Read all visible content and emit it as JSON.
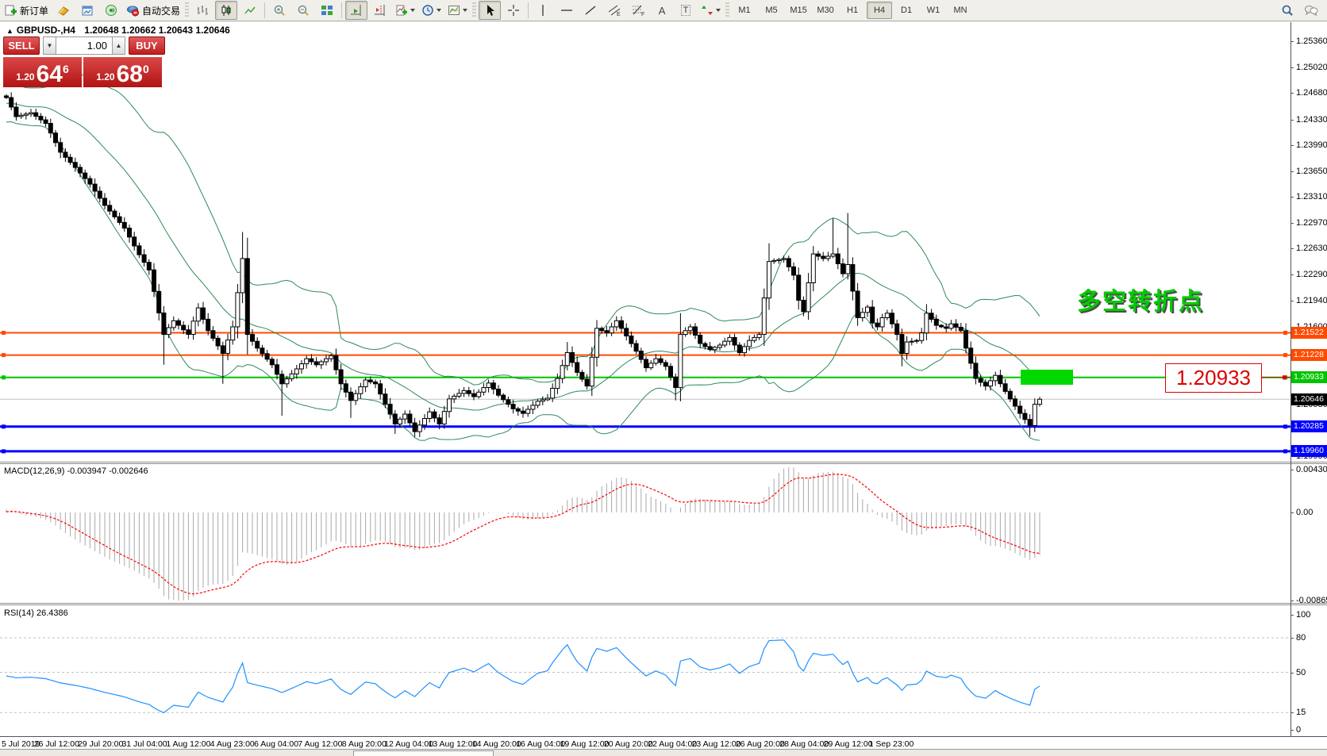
{
  "toolbar": {
    "new_order_label": "新订单",
    "autotrade_label": "自动交易",
    "letter_a": "A",
    "letter_t": "T",
    "timeframes": [
      {
        "id": "M1"
      },
      {
        "id": "M5"
      },
      {
        "id": "M15"
      },
      {
        "id": "M30"
      },
      {
        "id": "H1"
      },
      {
        "id": "H4",
        "active": true
      },
      {
        "id": "D1"
      },
      {
        "id": "W1"
      },
      {
        "id": "MN"
      }
    ]
  },
  "oneclick": {
    "sell_label": "SELL",
    "buy_label": "BUY",
    "volume": "1.00",
    "sell_small": "1.20",
    "sell_big": "64",
    "sell_sup": "6",
    "buy_small": "1.20",
    "buy_big": "68",
    "buy_sup": "0"
  },
  "chart": {
    "title": "GBPUSD-,H4",
    "ohlc": "1.20648 1.20662 1.20643 1.20646",
    "marker": "▲"
  },
  "annotations": {
    "turning_point": "多空转折点",
    "price_box": "1.20933"
  },
  "time_axis": {
    "labels": [
      "5 Jul 2019",
      "26 Jul 12:00",
      "29 Jul 20:00",
      "31 Jul 04:00",
      "1 Aug 12:00",
      "4 Aug 23:00",
      "6 Aug 04:00",
      "7 Aug 12:00",
      "8 Aug 20:00",
      "12 Aug 04:00",
      "13 Aug 12:00",
      "14 Aug 20:00",
      "16 Aug 04:00",
      "19 Aug 12:00",
      "20 Aug 20:00",
      "22 Aug 04:00",
      "23 Aug 12:00",
      "26 Aug 20:00",
      "28 Aug 04:00",
      "29 Aug 12:00",
      "1 Sep 23:00"
    ]
  },
  "chart_data": [
    {
      "type": "candlestick",
      "symbol": "GBPUSD-",
      "period": "H4",
      "bid": 1.20646,
      "bid_label": "1.20646",
      "y_ticks": [
        "1.25360",
        "1.25020",
        "1.24680",
        "1.24330",
        "1.23990",
        "1.23650",
        "1.23310",
        "1.22970",
        "1.22630",
        "1.22290",
        "1.21940",
        "1.21600",
        "1.21260",
        "1.20920",
        "1.20580",
        "1.20240",
        "1.19900"
      ],
      "y_top_price": 1.2536,
      "y_bottom_price": 1.199,
      "hlines": [
        {
          "price": 1.21522,
          "label": "1.21522",
          "color": "#ff4b00",
          "width": 2
        },
        {
          "price": 1.21228,
          "label": "1.21228",
          "color": "#ff4b00",
          "width": 2
        },
        {
          "price": 1.20933,
          "label": "1.20933",
          "color": "#00c400",
          "width": 2
        },
        {
          "price": 1.20285,
          "label": "1.20285",
          "color": "#0000ff",
          "width": 3
        },
        {
          "price": 1.1996,
          "label": "1.19960",
          "color": "#0000ff",
          "width": 3
        }
      ],
      "bollinger_period": 20,
      "bollinger_dev": 2,
      "close_path": [
        [
          0,
          1.2462
        ],
        [
          2,
          1.2437
        ],
        [
          5,
          1.2442
        ],
        [
          8,
          1.2428
        ],
        [
          11,
          1.239
        ],
        [
          14,
          1.237
        ],
        [
          17,
          1.2348
        ],
        [
          20,
          1.232
        ],
        [
          24,
          1.229
        ],
        [
          27,
          1.2255
        ],
        [
          29,
          1.2235
        ],
        [
          32,
          1.215
        ],
        [
          34,
          1.2168
        ],
        [
          37,
          1.215
        ],
        [
          39,
          1.2185
        ],
        [
          41,
          1.2155
        ],
        [
          44,
          1.2125
        ],
        [
          46,
          1.216
        ],
        [
          48,
          1.225
        ],
        [
          49,
          1.215
        ],
        [
          51,
          1.2132
        ],
        [
          54,
          1.211
        ],
        [
          56,
          1.2085
        ],
        [
          58,
          1.2098
        ],
        [
          61,
          1.2118
        ],
        [
          63,
          1.211
        ],
        [
          66,
          1.2122
        ],
        [
          68,
          1.2085
        ],
        [
          70,
          1.2063
        ],
        [
          73,
          1.209
        ],
        [
          75,
          1.2085
        ],
        [
          77,
          1.2058
        ],
        [
          79,
          1.2032
        ],
        [
          81,
          1.2045
        ],
        [
          83,
          1.2022
        ],
        [
          86,
          1.2048
        ],
        [
          88,
          1.2032
        ],
        [
          90,
          1.2065
        ],
        [
          93,
          1.2076
        ],
        [
          95,
          1.2068
        ],
        [
          98,
          1.2086
        ],
        [
          100,
          1.207
        ],
        [
          103,
          1.2052
        ],
        [
          105,
          1.2046
        ],
        [
          108,
          1.2062
        ],
        [
          110,
          1.2066
        ],
        [
          112,
          1.2092
        ],
        [
          114,
          1.2126
        ],
        [
          116,
          1.21
        ],
        [
          118,
          1.2082
        ],
        [
          120,
          1.2158
        ],
        [
          122,
          1.2152
        ],
        [
          124,
          1.2168
        ],
        [
          126,
          1.2148
        ],
        [
          128,
          1.2128
        ],
        [
          130,
          1.2106
        ],
        [
          132,
          1.2118
        ],
        [
          134,
          1.2108
        ],
        [
          136,
          1.208
        ],
        [
          137,
          1.215
        ],
        [
          139,
          1.216
        ],
        [
          141,
          1.2138
        ],
        [
          143,
          1.213
        ],
        [
          145,
          1.2136
        ],
        [
          147,
          1.2146
        ],
        [
          149,
          1.2126
        ],
        [
          151,
          1.2142
        ],
        [
          153,
          1.215
        ],
        [
          155,
          1.2246
        ],
        [
          158,
          1.225
        ],
        [
          160,
          1.2228
        ],
        [
          161,
          1.2195
        ],
        [
          162,
          1.218
        ],
        [
          164,
          1.2256
        ],
        [
          166,
          1.225
        ],
        [
          168,
          1.2256
        ],
        [
          170,
          1.223
        ],
        [
          171,
          1.2242
        ],
        [
          173,
          1.2172
        ],
        [
          175,
          1.2186
        ],
        [
          176,
          1.2165
        ],
        [
          177,
          1.216
        ],
        [
          178,
          1.2172
        ],
        [
          179,
          1.2178
        ],
        [
          181,
          1.215
        ],
        [
          182,
          1.2125
        ],
        [
          183,
          1.214
        ],
        [
          185,
          1.2142
        ],
        [
          186,
          1.2152
        ],
        [
          187,
          1.2178
        ],
        [
          189,
          1.2162
        ],
        [
          191,
          1.2158
        ],
        [
          192,
          1.2164
        ],
        [
          194,
          1.2155
        ],
        [
          195,
          1.2132
        ],
        [
          197,
          1.2092
        ],
        [
          199,
          1.2082
        ],
        [
          201,
          1.2096
        ],
        [
          202,
          1.2085
        ],
        [
          204,
          1.2065
        ],
        [
          206,
          1.2046
        ],
        [
          208,
          1.203
        ],
        [
          209,
          1.2058
        ],
        [
          210,
          1.20646
        ]
      ],
      "wick_overrides": [
        {
          "i": 32,
          "low": 1.211
        },
        {
          "i": 44,
          "low": 1.2085
        },
        {
          "i": 48,
          "high": 1.2285
        },
        {
          "i": 56,
          "low": 1.2043
        },
        {
          "i": 70,
          "low": 1.204
        },
        {
          "i": 79,
          "low": 1.2019
        },
        {
          "i": 83,
          "low": 1.2015
        },
        {
          "i": 114,
          "high": 1.214
        },
        {
          "i": 136,
          "low": 1.2063
        },
        {
          "i": 137,
          "high": 1.2178
        },
        {
          "i": 155,
          "high": 1.227
        },
        {
          "i": 168,
          "high": 1.2303
        },
        {
          "i": 171,
          "high": 1.231
        },
        {
          "i": 182,
          "low": 1.2108
        },
        {
          "i": 187,
          "high": 1.219
        },
        {
          "i": 208,
          "low": 1.2016
        }
      ]
    },
    {
      "type": "macd",
      "display": "MACD(12,26,9) -0.003947 -0.002646",
      "label": "MACD(12,26,9)",
      "value_main": "-0.003947",
      "value_signal": "-0.002646",
      "fast": 12,
      "slow": 26,
      "signal": 9,
      "axis_ticks": [
        "0.004301",
        "0.00",
        "-0.008651"
      ]
    },
    {
      "type": "rsi",
      "display": "RSI(14) 26.4386",
      "label": "RSI(14)",
      "value": "26.4386",
      "period": 14,
      "levels": [
        "100",
        "80",
        "50",
        "15",
        "0"
      ]
    }
  ],
  "colors": {
    "band": "#2e8b57",
    "bid_line": "#c0c0c0",
    "macd_hist": "#a9a9a9",
    "macd_signal": "#ff0000",
    "rsi_line": "#1e90ff",
    "annotation_green": "#00cc00",
    "annotation_red": "#dd0000",
    "buy_sell_red": "#c01d1d"
  }
}
